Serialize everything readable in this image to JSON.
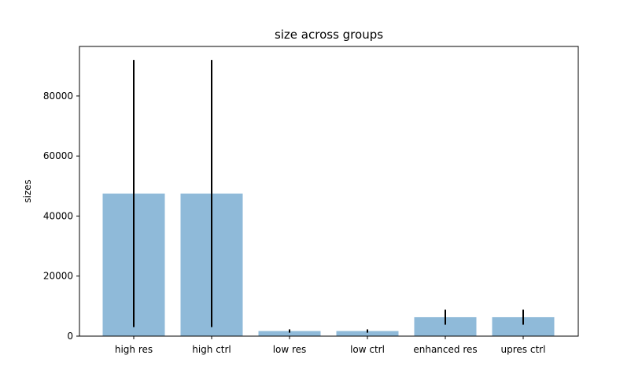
{
  "chart_data": {
    "type": "bar",
    "title": "size across groups",
    "xlabel": "",
    "ylabel": "sizes",
    "categories": [
      "high res",
      "high ctrl",
      "low res",
      "low ctrl",
      "enhanced res",
      "upres ctrl"
    ],
    "values": [
      47500,
      47500,
      1700,
      1700,
      6300,
      6300
    ],
    "error_low": [
      3000,
      3000,
      1150,
      1150,
      3800,
      3800
    ],
    "error_high": [
      92000,
      92000,
      2250,
      2250,
      8800,
      8800
    ],
    "ylim": [
      0,
      96500
    ],
    "yticks": [
      0,
      20000,
      40000,
      60000,
      80000
    ],
    "ytick_labels": [
      "0",
      "20000",
      "40000",
      "60000",
      "80000"
    ],
    "grid": false,
    "bar_color": "#8fbad9",
    "error_color": "#000000"
  }
}
